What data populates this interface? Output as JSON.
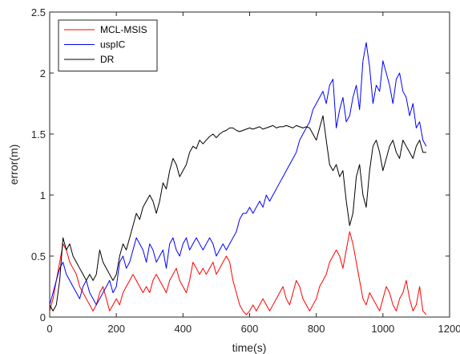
{
  "chart_data": {
    "type": "line",
    "title": "",
    "xlabel": "time(s)",
    "ylabel": "error(m)",
    "xlim": [
      0,
      1200
    ],
    "ylim": [
      0,
      2.5
    ],
    "xticks": [
      0,
      200,
      400,
      600,
      800,
      1000,
      1200
    ],
    "xtick_labels": [
      "0",
      "200",
      "400",
      "600",
      "800",
      "1000",
      "1200"
    ],
    "yticks": [
      0,
      0.5,
      1,
      1.5,
      2,
      2.5
    ],
    "ytick_labels": [
      "0",
      "0.5",
      "1",
      "1.5",
      "2",
      "2.5"
    ],
    "grid": false,
    "legend_position": "top-left",
    "series": [
      {
        "name": "MCL-MSIS",
        "color": "#ff0000",
        "x": [
          0,
          10,
          20,
          30,
          40,
          50,
          60,
          70,
          80,
          90,
          100,
          110,
          120,
          130,
          140,
          150,
          160,
          170,
          180,
          190,
          200,
          210,
          220,
          230,
          240,
          250,
          260,
          270,
          280,
          290,
          300,
          310,
          320,
          330,
          340,
          350,
          360,
          370,
          380,
          390,
          400,
          410,
          420,
          430,
          440,
          450,
          460,
          470,
          480,
          490,
          500,
          510,
          520,
          530,
          540,
          550,
          560,
          570,
          580,
          590,
          600,
          610,
          620,
          630,
          640,
          650,
          660,
          670,
          680,
          690,
          700,
          710,
          720,
          730,
          740,
          750,
          760,
          770,
          780,
          790,
          800,
          810,
          820,
          830,
          840,
          850,
          860,
          870,
          880,
          890,
          900,
          910,
          920,
          930,
          940,
          950,
          960,
          970,
          980,
          990,
          1000,
          1010,
          1020,
          1030,
          1040,
          1050,
          1060,
          1070,
          1080,
          1090,
          1100,
          1110,
          1120,
          1130
        ],
        "values": [
          0.05,
          0.15,
          0.3,
          0.45,
          0.6,
          0.55,
          0.45,
          0.4,
          0.35,
          0.25,
          0.2,
          0.15,
          0.1,
          0.05,
          0.1,
          0.2,
          0.25,
          0.15,
          0.05,
          0.1,
          0.15,
          0.1,
          0.2,
          0.25,
          0.3,
          0.35,
          0.3,
          0.25,
          0.2,
          0.25,
          0.2,
          0.3,
          0.35,
          0.3,
          0.25,
          0.2,
          0.3,
          0.35,
          0.4,
          0.3,
          0.25,
          0.2,
          0.3,
          0.45,
          0.4,
          0.35,
          0.4,
          0.35,
          0.4,
          0.45,
          0.35,
          0.4,
          0.45,
          0.5,
          0.45,
          0.3,
          0.2,
          0.1,
          0.05,
          0.02,
          0.05,
          0.1,
          0.05,
          0.1,
          0.15,
          0.1,
          0.05,
          0.1,
          0.15,
          0.2,
          0.25,
          0.15,
          0.1,
          0.2,
          0.3,
          0.25,
          0.15,
          0.1,
          0.05,
          0.1,
          0.15,
          0.25,
          0.3,
          0.35,
          0.45,
          0.5,
          0.55,
          0.5,
          0.4,
          0.55,
          0.7,
          0.6,
          0.45,
          0.3,
          0.15,
          0.1,
          0.2,
          0.15,
          0.1,
          0.05,
          0.15,
          0.25,
          0.2,
          0.1,
          0.05,
          0.15,
          0.2,
          0.3,
          0.15,
          0.05,
          0.1,
          0.25,
          0.05,
          0.02
        ]
      },
      {
        "name": "uspIC",
        "color": "#0000ff",
        "x": [
          0,
          10,
          20,
          30,
          40,
          50,
          60,
          70,
          80,
          90,
          100,
          110,
          120,
          130,
          140,
          150,
          160,
          170,
          180,
          190,
          200,
          210,
          220,
          230,
          240,
          250,
          260,
          270,
          280,
          290,
          300,
          310,
          320,
          330,
          340,
          350,
          360,
          370,
          380,
          390,
          400,
          410,
          420,
          430,
          440,
          450,
          460,
          470,
          480,
          490,
          500,
          510,
          520,
          530,
          540,
          550,
          560,
          570,
          580,
          590,
          600,
          610,
          620,
          630,
          640,
          650,
          660,
          670,
          680,
          690,
          700,
          710,
          720,
          730,
          740,
          750,
          760,
          770,
          780,
          790,
          800,
          810,
          820,
          830,
          840,
          850,
          860,
          870,
          880,
          890,
          900,
          910,
          920,
          930,
          940,
          950,
          960,
          970,
          980,
          990,
          1000,
          1010,
          1020,
          1030,
          1040,
          1050,
          1060,
          1070,
          1080,
          1090,
          1100,
          1110,
          1120,
          1130
        ],
        "values": [
          0.1,
          0.2,
          0.3,
          0.4,
          0.45,
          0.35,
          0.3,
          0.25,
          0.2,
          0.15,
          0.25,
          0.3,
          0.2,
          0.15,
          0.1,
          0.15,
          0.2,
          0.25,
          0.3,
          0.2,
          0.25,
          0.45,
          0.5,
          0.4,
          0.45,
          0.55,
          0.65,
          0.6,
          0.55,
          0.45,
          0.6,
          0.55,
          0.45,
          0.5,
          0.55,
          0.4,
          0.6,
          0.65,
          0.55,
          0.5,
          0.6,
          0.65,
          0.55,
          0.6,
          0.65,
          0.6,
          0.55,
          0.6,
          0.65,
          0.6,
          0.5,
          0.55,
          0.6,
          0.55,
          0.6,
          0.65,
          0.7,
          0.8,
          0.85,
          0.85,
          0.9,
          0.85,
          0.9,
          0.95,
          0.9,
          1.0,
          0.95,
          1.0,
          1.05,
          1.1,
          1.15,
          1.2,
          1.25,
          1.3,
          1.35,
          1.45,
          1.5,
          1.55,
          1.6,
          1.7,
          1.75,
          1.8,
          1.85,
          1.75,
          1.9,
          1.95,
          1.55,
          1.7,
          1.8,
          1.6,
          1.65,
          1.8,
          1.9,
          1.7,
          2.1,
          2.25,
          2.05,
          1.75,
          1.9,
          1.85,
          2.1,
          2.0,
          1.9,
          1.75,
          1.95,
          2.0,
          1.85,
          1.8,
          1.65,
          1.75,
          1.55,
          1.6,
          1.45,
          1.4
        ]
      },
      {
        "name": "DR",
        "color": "#000000",
        "x": [
          0,
          10,
          20,
          30,
          40,
          50,
          60,
          70,
          80,
          90,
          100,
          110,
          120,
          130,
          140,
          150,
          160,
          170,
          180,
          190,
          200,
          210,
          220,
          230,
          240,
          250,
          260,
          270,
          280,
          290,
          300,
          310,
          320,
          330,
          340,
          350,
          360,
          370,
          380,
          390,
          400,
          410,
          420,
          430,
          440,
          450,
          460,
          470,
          480,
          490,
          500,
          510,
          520,
          530,
          540,
          550,
          560,
          570,
          580,
          590,
          600,
          610,
          620,
          630,
          640,
          650,
          660,
          670,
          680,
          690,
          700,
          710,
          720,
          730,
          740,
          750,
          760,
          770,
          780,
          790,
          800,
          810,
          820,
          830,
          840,
          850,
          860,
          870,
          880,
          890,
          900,
          910,
          920,
          930,
          940,
          950,
          960,
          970,
          980,
          990,
          1000,
          1010,
          1020,
          1030,
          1040,
          1050,
          1060,
          1070,
          1080,
          1090,
          1100,
          1110,
          1120,
          1130
        ],
        "values": [
          0.1,
          0.05,
          0.1,
          0.3,
          0.65,
          0.55,
          0.6,
          0.5,
          0.45,
          0.4,
          0.35,
          0.3,
          0.35,
          0.3,
          0.35,
          0.55,
          0.45,
          0.4,
          0.35,
          0.3,
          0.35,
          0.5,
          0.6,
          0.55,
          0.65,
          0.75,
          0.85,
          0.8,
          0.9,
          0.95,
          1.0,
          0.95,
          0.85,
          0.95,
          1.1,
          1.05,
          1.2,
          1.3,
          1.25,
          1.15,
          1.2,
          1.25,
          1.35,
          1.4,
          1.38,
          1.45,
          1.42,
          1.45,
          1.48,
          1.5,
          1.47,
          1.5,
          1.52,
          1.53,
          1.55,
          1.55,
          1.53,
          1.52,
          1.53,
          1.54,
          1.55,
          1.54,
          1.55,
          1.56,
          1.54,
          1.55,
          1.56,
          1.57,
          1.55,
          1.56,
          1.56,
          1.57,
          1.56,
          1.55,
          1.57,
          1.56,
          1.55,
          1.56,
          1.55,
          1.5,
          1.45,
          1.55,
          1.65,
          1.45,
          1.25,
          1.2,
          1.25,
          1.15,
          1.2,
          0.95,
          0.75,
          0.85,
          1.15,
          1.25,
          1.0,
          0.9,
          1.2,
          1.4,
          1.45,
          1.35,
          1.2,
          1.3,
          1.4,
          1.45,
          1.35,
          1.3,
          1.45,
          1.4,
          1.35,
          1.3,
          1.4,
          1.45,
          1.35,
          1.35
        ]
      }
    ]
  }
}
